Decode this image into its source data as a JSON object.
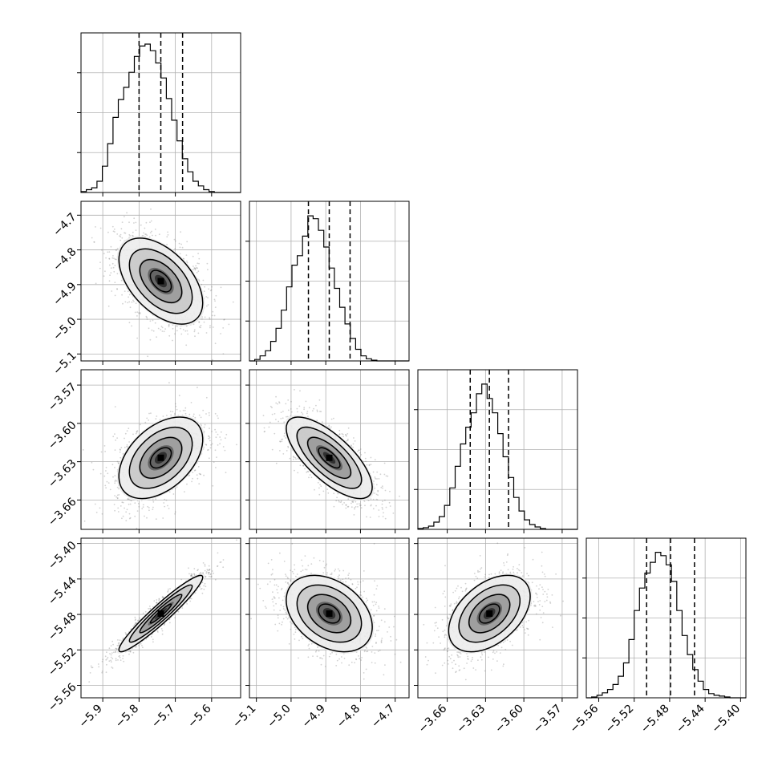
{
  "chart_data": {
    "type": "corner",
    "dimensions": 4,
    "grid": true,
    "axes": [
      {
        "ticks": [
          -5.9,
          -5.8,
          -5.7,
          -5.6
        ],
        "tick_labels": [
          "−5.9",
          "−5.8",
          "−5.7",
          "−5.6"
        ],
        "range": [
          -5.96,
          -5.52
        ],
        "quantiles": [
          -5.8,
          -5.74,
          -5.68
        ]
      },
      {
        "ticks": [
          -5.1,
          -5.0,
          -4.9,
          -4.8,
          -4.7
        ],
        "tick_labels": [
          "−5.1",
          "−5.0",
          "−4.9",
          "−4.8",
          "−4.7"
        ],
        "range": [
          -5.12,
          -4.66
        ],
        "quantiles": [
          -4.95,
          -4.89,
          -4.83
        ]
      },
      {
        "ticks": [
          -3.66,
          -3.63,
          -3.6,
          -3.57
        ],
        "tick_labels": [
          "−3.66",
          "−3.63",
          "−3.60",
          "−3.57"
        ],
        "range": [
          -3.683,
          -3.558
        ],
        "quantiles": [
          -3.642,
          -3.627,
          -3.612
        ]
      },
      {
        "ticks": [
          -5.56,
          -5.52,
          -5.48,
          -5.44,
          -5.4
        ],
        "tick_labels": [
          "−5.56",
          "−5.52",
          "−5.48",
          "−5.44",
          "−5.40"
        ],
        "range": [
          -5.574,
          -5.394
        ],
        "quantiles": [
          -5.506,
          -5.479,
          -5.452
        ]
      }
    ],
    "histograms": [
      {
        "param": 0,
        "start": -5.96,
        "width": 0.0147,
        "counts": [
          1,
          3,
          5,
          12,
          28,
          52,
          80,
          99,
          112,
          128,
          145,
          156,
          158,
          151,
          138,
          122,
          100,
          77,
          55,
          36,
          22,
          12,
          7,
          3,
          1,
          0,
          0,
          0,
          0,
          0
        ],
        "max_count": 170
      },
      {
        "param": 1,
        "start": -5.12,
        "width": 0.0153,
        "counts": [
          0,
          2,
          7,
          14,
          27,
          45,
          70,
          102,
          132,
          145,
          172,
          200,
          196,
          180,
          157,
          128,
          100,
          74,
          51,
          31,
          16,
          7,
          3,
          1,
          0,
          0,
          0,
          0,
          0,
          0
        ],
        "max_count": 220
      },
      {
        "param": 2,
        "start": -3.683,
        "width": 0.00417,
        "counts": [
          1,
          2,
          4,
          9,
          16,
          30,
          52,
          79,
          107,
          128,
          146,
          170,
          182,
          164,
          146,
          120,
          91,
          65,
          40,
          23,
          12,
          6,
          3,
          1,
          0,
          0,
          0,
          0,
          0,
          0
        ],
        "max_count": 200
      },
      {
        "param": 3,
        "start": -5.574,
        "width": 0.006,
        "counts": [
          0,
          1,
          3,
          6,
          10,
          16,
          26,
          42,
          70,
          105,
          132,
          150,
          163,
          175,
          171,
          160,
          140,
          105,
          75,
          52,
          34,
          20,
          10,
          5,
          3,
          2,
          1,
          0,
          0,
          0
        ],
        "max_count": 192
      }
    ],
    "pairs": [
      {
        "x_param": 0,
        "y_param": 1,
        "center": [
          -5.74,
          -4.89
        ],
        "sd": [
          0.055,
          0.059
        ],
        "rho": -0.5
      },
      {
        "x_param": 0,
        "y_param": 2,
        "center": [
          -5.74,
          -3.627
        ],
        "sd": [
          0.055,
          0.0152
        ],
        "rho": 0.45
      },
      {
        "x_param": 1,
        "y_param": 2,
        "center": [
          -4.89,
          -3.627
        ],
        "sd": [
          0.059,
          0.0152
        ],
        "rho": -0.72
      },
      {
        "x_param": 0,
        "y_param": 3,
        "center": [
          -5.74,
          -5.479
        ],
        "sd": [
          0.055,
          0.0205
        ],
        "rho": 0.95
      },
      {
        "x_param": 1,
        "y_param": 3,
        "center": [
          -4.89,
          -5.479
        ],
        "sd": [
          0.059,
          0.0205
        ],
        "rho": -0.35
      },
      {
        "x_param": 2,
        "y_param": 3,
        "center": [
          -3.627,
          -5.479
        ],
        "sd": [
          0.0152,
          0.0205
        ],
        "rho": 0.45
      }
    ],
    "contour_levels_sigma": [
      0.5,
      1.0,
      1.5,
      2.0
    ],
    "colors": {
      "line": "#000000",
      "grid": "#b0b0b0",
      "points": "#7f7f7f"
    }
  }
}
